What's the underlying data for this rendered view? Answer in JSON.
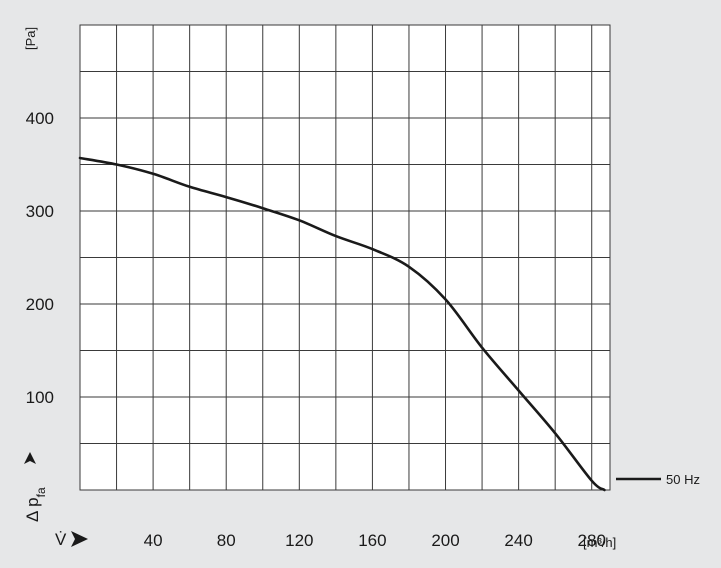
{
  "chart_data": {
    "type": "line",
    "xlabel": "V̇",
    "xunit": "[m³/h]",
    "ylabel_symbol": "Δ p",
    "ylabel_subscript": "fa",
    "yunit": "[Pa]",
    "xlim": [
      0,
      290
    ],
    "ylim": [
      0,
      500
    ],
    "x_ticks": [
      40,
      80,
      120,
      160,
      200,
      240,
      280
    ],
    "y_ticks": [
      100,
      200,
      300,
      400
    ],
    "grid": true,
    "legend_position": "bottom-right",
    "series": [
      {
        "name": "50 Hz",
        "color": "#1a1a1a",
        "x": [
          0,
          20,
          40,
          60,
          80,
          100,
          120,
          140,
          160,
          180,
          200,
          220,
          240,
          260,
          280,
          287
        ],
        "y": [
          357,
          350,
          340,
          326,
          315,
          303,
          290,
          273,
          259,
          240,
          205,
          153,
          107,
          61,
          10,
          0
        ]
      }
    ]
  }
}
